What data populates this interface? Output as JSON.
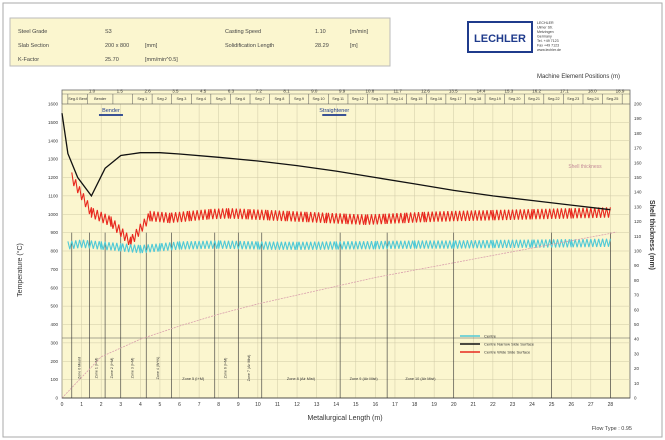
{
  "info_box": {
    "steel_grade_label": "Steel Grade",
    "steel_grade_value": "S3",
    "slab_section_label": "Slab Section",
    "slab_section_value": "200 x 800",
    "slab_section_unit": "[mm]",
    "k_factor_label": "K-Factor",
    "k_factor_value": "25.70",
    "k_factor_unit": "[mm/min^0.5]",
    "casting_speed_label": "Casting Speed",
    "casting_speed_value": "1.10",
    "casting_speed_unit": "[m/min]",
    "solid_length_label": "Solidification Length",
    "solid_length_value": "28.29",
    "solid_length_unit": "[m]"
  },
  "logo": {
    "text": "LECHLER",
    "address_lines": [
      "LECHLER",
      "Ulmer Str.",
      "Metzingen",
      "Germany",
      "Tel. +49 7123",
      "Fax +49 7123",
      "www.lechler.de"
    ]
  },
  "chart_data": {
    "type": "line",
    "title": "",
    "top_axis_label": "Machine Element Positions (m)",
    "top_ticks": [
      "1.0",
      "1.5",
      "2.6",
      "3.5",
      "4.5",
      "6.3",
      "7.2",
      "8.1",
      "9.0",
      "9.9",
      "10.8",
      "11.7",
      "12.6",
      "13.5",
      "14.4",
      "15.3",
      "16.2",
      "17.1",
      "18.0",
      "18.9"
    ],
    "xlabel": "Metallurgical Length (m)",
    "ylabel": "Temperature (°C)",
    "y2label": "Shell thickness (mm)",
    "xlim": [
      0,
      29
    ],
    "ylim": [
      0,
      1600
    ],
    "y2lim": [
      0,
      200
    ],
    "x_ticks": [
      0,
      1,
      2,
      3,
      4,
      5,
      6,
      7,
      8,
      9,
      10,
      11,
      12,
      13,
      14,
      15,
      16,
      17,
      18,
      19,
      20,
      21,
      22,
      23,
      24,
      25,
      26,
      27,
      28
    ],
    "y_ticks": [
      0,
      100,
      200,
      300,
      400,
      500,
      600,
      700,
      800,
      900,
      1000,
      1100,
      1200,
      1300,
      1400,
      1500,
      1600
    ],
    "y2_ticks": [
      0,
      10,
      20,
      30,
      40,
      50,
      60,
      70,
      80,
      90,
      100,
      110,
      120,
      130,
      140,
      150,
      160,
      170,
      180,
      190,
      200
    ],
    "segment_boundaries": [
      0.3,
      1.3,
      2.6,
      3.6,
      4.6,
      5.6,
      6.6,
      7.6,
      8.6,
      9.6,
      10.6,
      11.6,
      12.6,
      13.6,
      14.6,
      15.6,
      16.6,
      17.6,
      18.6,
      19.6,
      20.6,
      21.6,
      22.6,
      23.6,
      24.6,
      25.6,
      26.6,
      27.6,
      28.6
    ],
    "segment_labels": [
      "Seg.0 Bent",
      "Bender",
      "",
      "Seg.1",
      "Seg.2",
      "Seg.3",
      "Seg.4",
      "Seg.5",
      "Seg.6",
      "Seg.7",
      "Seg.8",
      "Seg.9",
      "Seg.10",
      "Seg.11",
      "Seg.12",
      "Seg.13",
      "Seg.14",
      "Seg.15",
      "Seg.16",
      "Seg.17",
      "Seg.18",
      "Seg.19",
      "Seg.20",
      "Seg.21",
      "Seg.22",
      "Seg.23",
      "Seg.24",
      "Seg.25"
    ],
    "zone_titles": [
      {
        "text": "Bender",
        "x": 2.5
      },
      {
        "text": "Straightener",
        "x": 13.9
      }
    ],
    "zone_boundaries": [
      0.5,
      1.4,
      2.2,
      3.0,
      4.3,
      5.6,
      7.8,
      9.0,
      10.2,
      14.2,
      16.6,
      20.0,
      25.0,
      28.0
    ],
    "zone_labels": [
      "Zone 0 Mould",
      "Zone 1 (I+M)",
      "Zone 2 (I+M)",
      "Zone 3 (I+M)",
      "Zone 4 (W+N)",
      "Zone 5 (I+M)",
      "Zone 6 (I+M)",
      "Zone 7 (Air Mist)",
      "Zone 8 (Air Mist)",
      "Zone 9 (Air Mist)",
      "Zone 10 (Air Mist)"
    ],
    "shell_label": "Shell thickness",
    "legend": [
      {
        "name": "Centre",
        "color": "#4fc9d6"
      },
      {
        "name": "Centre Narrow Side Surface",
        "color": "#111111"
      },
      {
        "name": "Centre Wide Side Surface",
        "color": "#e8281e"
      }
    ],
    "series": [
      {
        "name": "Centre Wide Side Surface",
        "color": "#e8281e",
        "x": [
          0.5,
          1.5,
          2.5,
          3.5,
          4.5,
          5.5,
          6.5,
          7.5,
          8.5,
          9.5,
          10.5,
          11.5,
          12.5,
          13.5,
          14.5,
          15.5,
          16.5,
          17.5,
          18.5,
          20,
          22,
          24,
          26,
          28
        ],
        "y": [
          1200,
          1010,
          960,
          850,
          990,
          980,
          990,
          1000,
          1005,
          1000,
          995,
          990,
          985,
          980,
          975,
          970,
          975,
          980,
          985,
          990,
          995,
          1000,
          1005,
          1010
        ]
      },
      {
        "name": "Centre Narrow Side Surface",
        "color": "#111111",
        "x": [
          0,
          0.3,
          0.8,
          1.5,
          2.2,
          3.0,
          4.0,
          5.0,
          6.0,
          8.0,
          10.0,
          12.0,
          14.0,
          16.0,
          18.0,
          20.0,
          22.0,
          24.0,
          26.0,
          28.0
        ],
        "y": [
          1550,
          1330,
          1200,
          1100,
          1250,
          1320,
          1335,
          1335,
          1328,
          1310,
          1290,
          1265,
          1235,
          1200,
          1165,
          1130,
          1100,
          1075,
          1050,
          1025
        ]
      },
      {
        "name": "Centre",
        "color": "#4fc9d6",
        "x": [
          0.3,
          1.0,
          2.0,
          3.0,
          4.0,
          5.0,
          6.0,
          8.0,
          10.0,
          12.0,
          14.0,
          16.0,
          18.0,
          20.0,
          22.0,
          24.0,
          26.0,
          28.0
        ],
        "y": [
          830,
          840,
          830,
          820,
          810,
          820,
          830,
          835,
          830,
          828,
          830,
          832,
          835,
          835,
          838,
          840,
          842,
          845
        ]
      },
      {
        "name": "Shell thickness",
        "color": "#d9a0ad",
        "axis": "y2",
        "x": [
          0,
          2,
          4,
          6,
          8,
          10,
          12,
          14,
          16,
          18,
          20,
          22,
          24,
          26,
          28,
          28.3
        ],
        "y": [
          0,
          28,
          40,
          49,
          57,
          64,
          70,
          76,
          82,
          87,
          92,
          97,
          102,
          107,
          112,
          113
        ]
      }
    ],
    "grid": true,
    "legend_position": "bottom-right",
    "footer_note": "Flow Type : 0.95"
  }
}
